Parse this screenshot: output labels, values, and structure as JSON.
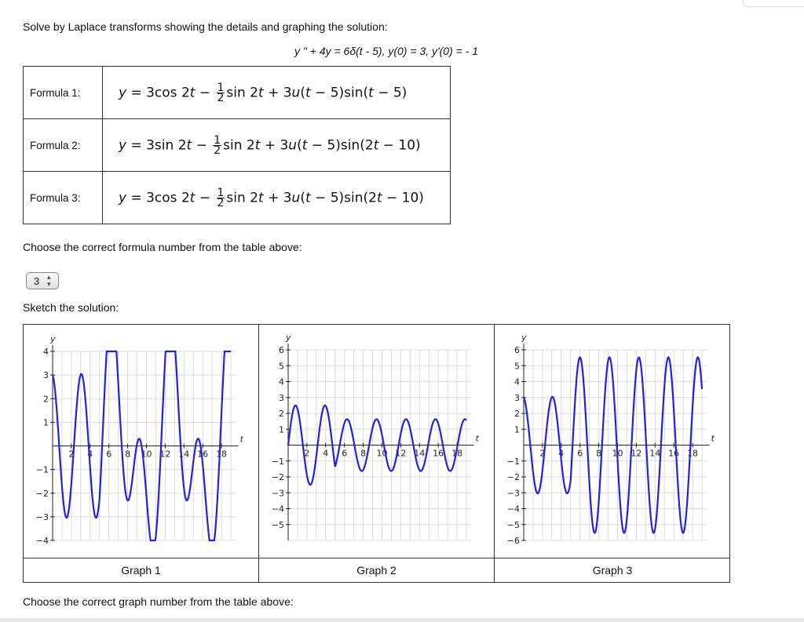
{
  "problem": {
    "intro": "Solve by Laplace transforms showing the details and graphing the solution:",
    "equation": "y \" + 4y = 6δ(t - 5), y(0) = 3, y'(0) = - 1"
  },
  "formulas": [
    {
      "label": "Formula 1:",
      "lhs": "y",
      "eq": " = 3cos 2",
      "t1": "t",
      "minus": " − ",
      "frac_num": "1",
      "frac_den": "2",
      "part2": "sin 2",
      "t2": "t",
      "part3": " + 3",
      "u": "u",
      "part4": "(",
      "t3": "t",
      "part5": " − 5)sin(",
      "t4": "t",
      "part6": " − 5)"
    },
    {
      "label": "Formula 2:",
      "lhs": "y",
      "eq": " = 3sin 2",
      "t1": "t",
      "minus": " − ",
      "frac_num": "1",
      "frac_den": "2",
      "part2": "sin 2",
      "t2": "t",
      "part3": " + 3",
      "u": "u",
      "part4": "(",
      "t3": "t",
      "part5": " − 5)sin(2",
      "t4": "t",
      "part6": " − 10)"
    },
    {
      "label": "Formula 3:",
      "lhs": "y",
      "eq": " = 3cos 2",
      "t1": "t",
      "minus": " − ",
      "frac_num": "1",
      "frac_den": "2",
      "part2": "sin 2",
      "t2": "t",
      "part3": " + 3",
      "u": "u",
      "part4": "(",
      "t3": "t",
      "part5": " − 5)sin(2",
      "t4": "t",
      "part6": " − 10)"
    }
  ],
  "formula_question": "Choose the correct formula number from the table above:",
  "formula_select": {
    "value": "3",
    "arrows": "▲▼"
  },
  "sketch_prompt": "Sketch the solution:",
  "graphs": [
    {
      "label": "Graph 1",
      "ylim": [
        -4,
        4
      ],
      "yticks": [
        "4",
        "3",
        "2",
        "1",
        "−1",
        "−2",
        "−3",
        "−4"
      ],
      "xticks": [
        "2",
        "4",
        "6",
        "8",
        "10",
        "12",
        "14",
        "16",
        "18"
      ],
      "xlabel": "t",
      "ylabel": "y",
      "curve_color": "#2222dd",
      "formula": "3cos2t - 0.5sin2t + 3u(t-5)sin(t-5)"
    },
    {
      "label": "Graph 2",
      "ylim": [
        -6,
        6
      ],
      "yticks": [
        "6",
        "5",
        "4",
        "3",
        "2",
        "1",
        "−1",
        "−2",
        "−3",
        "−4",
        "−5"
      ],
      "xticks": [
        "2",
        "4",
        "6",
        "8",
        "10",
        "12",
        "14",
        "16",
        "18"
      ],
      "xlabel": "t",
      "ylabel": "y",
      "curve_color": "#2222dd",
      "formula": "3sin2t - 0.5sin2t + 3u(t-5)sin(2t-10)"
    },
    {
      "label": "Graph 3",
      "ylim": [
        -6,
        6
      ],
      "yticks": [
        "6",
        "5",
        "4",
        "3",
        "2",
        "1",
        "−1",
        "−2",
        "−3",
        "−4",
        "−5",
        "−6"
      ],
      "xticks": [
        "2",
        "4",
        "6",
        "8",
        "10",
        "12",
        "14",
        "16",
        "18"
      ],
      "xlabel": "t",
      "ylabel": "y",
      "curve_color": "#2222dd",
      "formula": "3cos2t - 0.5sin2t + 3u(t-5)sin(2t-10)"
    }
  ],
  "graph_question": "Choose the correct graph number from the table above:"
}
